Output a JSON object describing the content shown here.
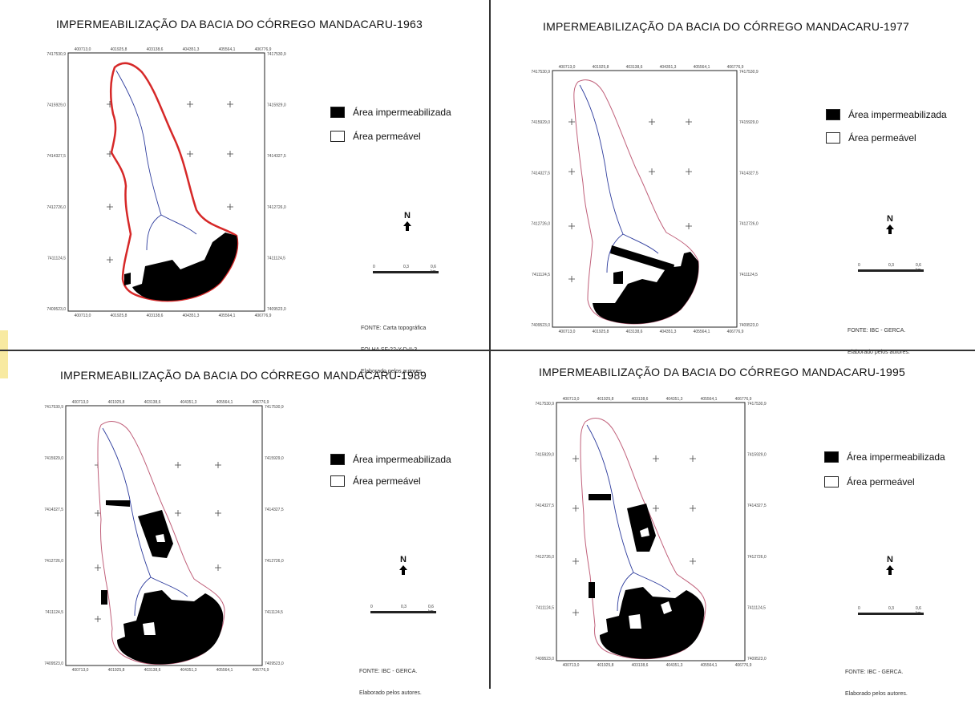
{
  "panels": [
    {
      "title": "IMPERMEABILIZAÇÃO DA BACIA DO CÓRREGO MANDACARU-1963",
      "legend": {
        "impermeable": "Área impermeabilizada",
        "permeable": "Área permeável"
      },
      "north": "N",
      "scale": [
        "0",
        "0,3",
        "0,6 km"
      ],
      "source_lines": [
        "FONTE: Carta topográfica",
        "FOLHA SF-22-Y-D-II-3",
        "Elaborado pelos autores."
      ],
      "x_coords": [
        "400713,0",
        "401925,8",
        "403138,6",
        "404351,3",
        "405564,1",
        "406776,9"
      ],
      "y_coords": [
        "7417530,9",
        "7415929,0",
        "7414327,5",
        "7412726,0",
        "7411124,5",
        "7409523,0"
      ]
    },
    {
      "title": "IMPERMEABILIZAÇÃO DA BACIA DO CÓRREGO MANDACARU-1977",
      "legend": {
        "impermeable": "Área impermeabilizada",
        "permeable": "Área permeável"
      },
      "north": "N",
      "scale": [
        "0",
        "0,3",
        "0,6 km"
      ],
      "source_lines": [
        "FONTE: IBC - GERCA.",
        "Elaborado pelos autores."
      ],
      "x_coords": [
        "400713,0",
        "401925,8",
        "403138,6",
        "404351,3",
        "405564,1",
        "406776,9"
      ],
      "y_coords": [
        "7417530,9",
        "7415929,0",
        "7414327,5",
        "7412726,0",
        "7411124,5",
        "7409523,0"
      ]
    },
    {
      "title": "IMPERMEABILIZAÇÃO DA BACIA DO CÓRREGO MANDACARU-1989",
      "legend": {
        "impermeable": "Área impermeabilizada",
        "permeable": "Área permeável"
      },
      "north": "N",
      "scale": [
        "0",
        "0,3",
        "0,6 km"
      ],
      "source_lines": [
        "FONTE: IBC - GERCA.",
        "Elaborado pelos autores."
      ],
      "x_coords": [
        "400713,0",
        "401925,8",
        "403138,6",
        "404351,3",
        "405564,1",
        "406776,9"
      ],
      "y_coords": [
        "7417530,9",
        "7415929,0",
        "7414327,5",
        "7412726,0",
        "7411124,5",
        "7409523,0"
      ]
    },
    {
      "title": "IMPERMEABILIZAÇÃO DA BACIA DO CÓRREGO MANDACARU-1995",
      "legend": {
        "impermeable": "Área impermeabilizada",
        "permeable": "Área permeável"
      },
      "north": "N",
      "scale": [
        "0",
        "0,3",
        "0,6 km"
      ],
      "source_lines": [
        "FONTE: IBC - GERCA.",
        "Elaborado pelos autores."
      ],
      "x_coords": [
        "400713,0",
        "401925,8",
        "403138,6",
        "404351,3",
        "405564,1",
        "406776,9"
      ],
      "y_coords": [
        "7417530,9",
        "7415929,0",
        "7414327,5",
        "7412726,0",
        "7411124,5",
        "7409523,0"
      ]
    }
  ],
  "colors": {
    "boundary_1963": "#d62828",
    "boundary": "#c0607a",
    "river": "#2b3a9c",
    "impervious": "#000000"
  }
}
